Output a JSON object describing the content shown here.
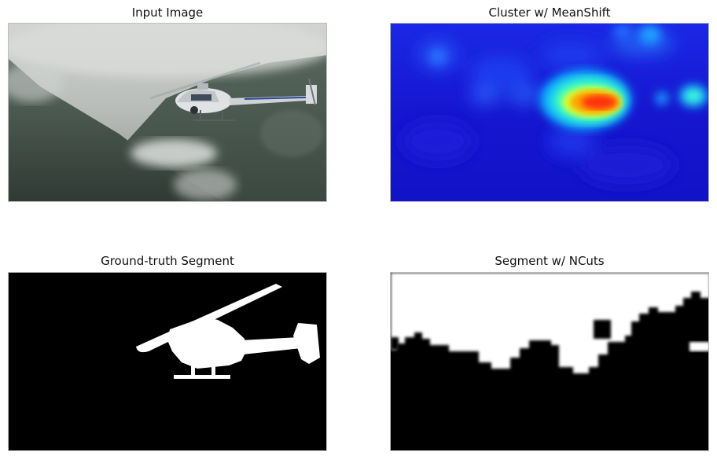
{
  "panels": {
    "input": {
      "title": "Input Image"
    },
    "meanshift": {
      "title": "Cluster w/ MeanShift"
    },
    "groundtruth": {
      "title": "Ground-truth Segment"
    },
    "ncuts": {
      "title": "Segment w/ NCuts"
    }
  },
  "colors": {
    "background": "#ffffff",
    "mask_foreground": "#ffffff",
    "mask_background": "#000000",
    "heatmap_low": "#1a1ad8",
    "heatmap_mid": "#00c8ff",
    "heatmap_high": "#ff2000"
  },
  "icons": [
    "helicopter-photo",
    "heatmap",
    "helicopter-mask",
    "segmentation-mask"
  ]
}
